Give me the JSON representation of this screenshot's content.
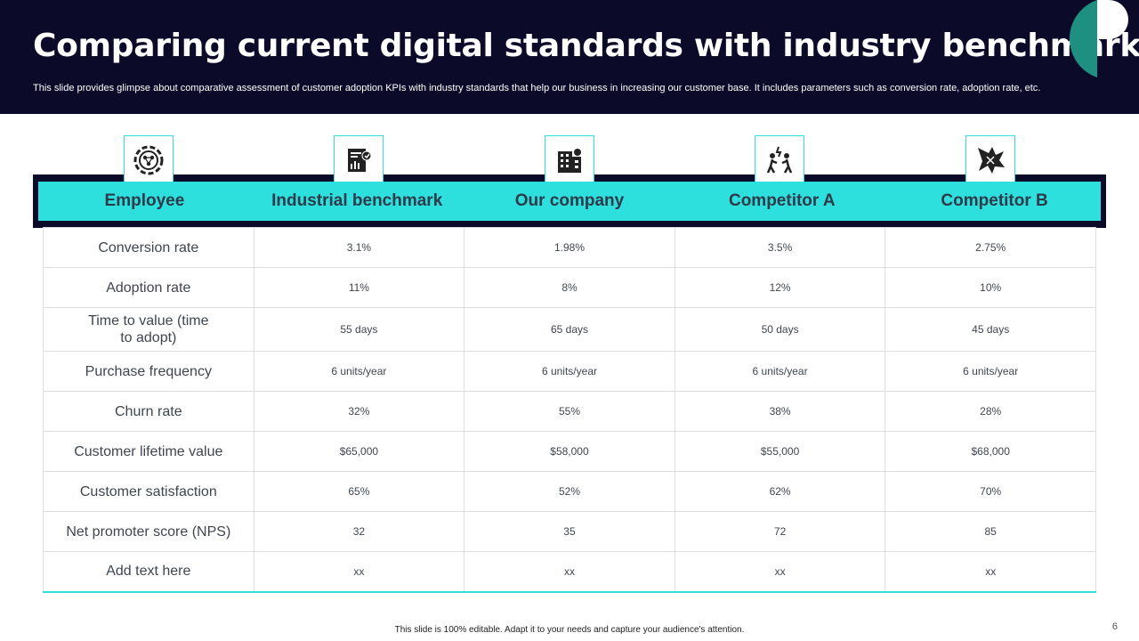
{
  "title": "Comparing current digital standards with industry benchmark",
  "subtitle": "This slide provides glimpse about comparative assessment of customer adoption KPIs with industry standards that help our business in increasing our customer base. It includes parameters such as conversion rate, adoption rate, etc.",
  "colors": {
    "header_bg": "#0b0a28",
    "accent": "#2ee0dd",
    "logo_teal": "#1f8f82"
  },
  "columns": [
    "Employee",
    "Industrial benchmark",
    "Our company",
    "Competitor A",
    "Competitor B"
  ],
  "column_icons": [
    "gear-network-icon",
    "report-chart-icon",
    "office-building-icon",
    "people-conflict-icon",
    "broken-shield-icon"
  ],
  "rows": [
    {
      "label": "Conversion rate",
      "values": [
        "3.1%",
        "1.98%",
        "3.5%",
        "2.75%"
      ]
    },
    {
      "label": "Adoption rate",
      "values": [
        "11%",
        "8%",
        "12%",
        "10%"
      ]
    },
    {
      "label": "Time to value (time\nto adopt)",
      "values": [
        "55 days",
        "65 days",
        "50 days",
        "45 days"
      ]
    },
    {
      "label": "Purchase frequency",
      "values": [
        "6 units/year",
        "6 units/year",
        "6 units/year",
        "6 units/year"
      ]
    },
    {
      "label": "Churn rate",
      "values": [
        "32%",
        "55%",
        "38%",
        "28%"
      ]
    },
    {
      "label": "Customer lifetime value",
      "values": [
        "$65,000",
        "$58,000",
        "$55,000",
        "$68,000"
      ]
    },
    {
      "label": "Customer satisfaction",
      "values": [
        "65%",
        "52%",
        "62%",
        "70%"
      ]
    },
    {
      "label": "Net promoter score (NPS)",
      "values": [
        "32",
        "35",
        "72",
        "85"
      ]
    },
    {
      "label": "Add text here",
      "values": [
        "xx",
        "xx",
        "xx",
        "xx"
      ]
    }
  ],
  "footer": "This slide is 100% editable. Adapt it to your needs and capture your audience's attention.",
  "page_number": "6"
}
